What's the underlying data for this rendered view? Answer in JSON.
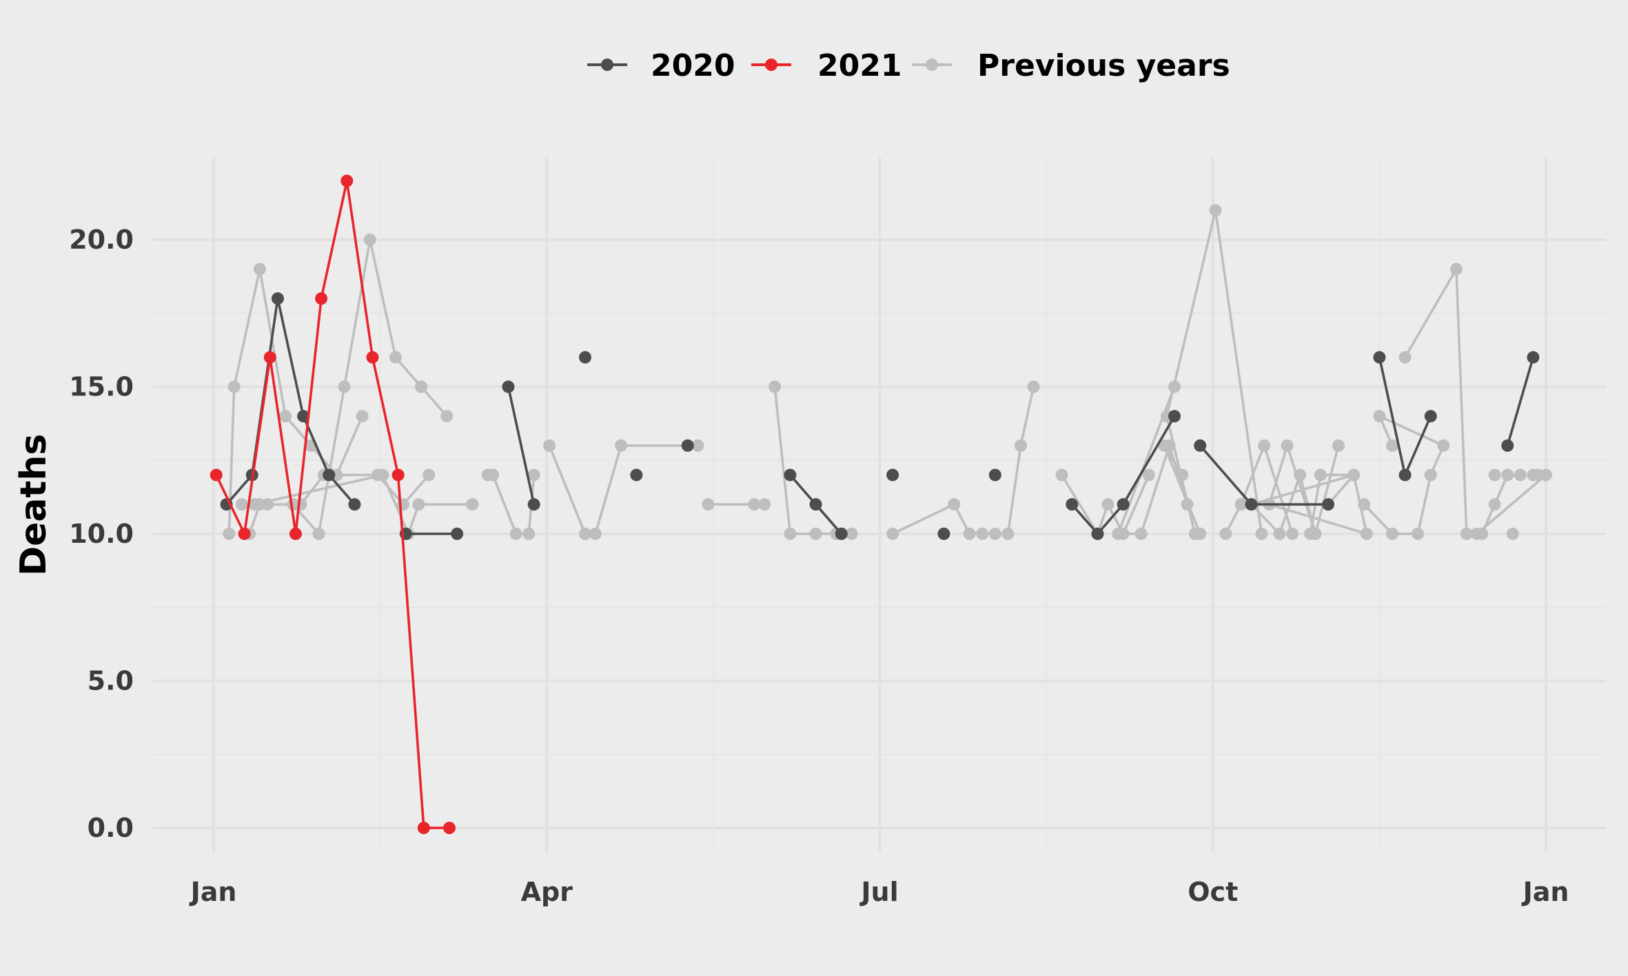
{
  "chart_data": {
    "type": "line",
    "title": "",
    "xlabel": "",
    "ylabel": "Deaths",
    "ylim": [
      -0.8,
      22.8
    ],
    "y_ticks": [
      0,
      5,
      10,
      15,
      20
    ],
    "y_tick_labels": [
      "0.0",
      "5.0",
      "10.0",
      "15.0",
      "20.0"
    ],
    "x_ticks": [
      "Jan",
      "Apr",
      "Jul",
      "Oct",
      "Jan"
    ],
    "x_unit": "week of year",
    "x_tick_weeks": [
      1,
      14,
      27,
      40,
      53
    ],
    "grid": true,
    "legend_position": "top",
    "series": [
      {
        "name": "2020",
        "color": "#4D4D4D",
        "points": [
          [
            1.5,
            11
          ],
          [
            2.5,
            12
          ],
          [
            3.5,
            18
          ],
          [
            4.5,
            14
          ],
          [
            5.5,
            12
          ],
          [
            6.5,
            11
          ],
          [
            8.5,
            10
          ],
          [
            10.5,
            10
          ],
          [
            12.5,
            15
          ],
          [
            13.5,
            11
          ],
          [
            15.5,
            16
          ],
          [
            17.5,
            12
          ],
          [
            19.5,
            13
          ],
          [
            23.5,
            12
          ],
          [
            24.5,
            11
          ],
          [
            25.5,
            10
          ],
          [
            27.5,
            12
          ],
          [
            29.5,
            10
          ],
          [
            31.5,
            12
          ],
          [
            34.5,
            11
          ],
          [
            35.5,
            10
          ],
          [
            36.5,
            11
          ],
          [
            38.5,
            14
          ],
          [
            39.5,
            13
          ],
          [
            41.5,
            11
          ],
          [
            44.5,
            11
          ],
          [
            46.5,
            16
          ],
          [
            47.5,
            12
          ],
          [
            48.5,
            14
          ],
          [
            51.5,
            13
          ],
          [
            52.5,
            16
          ]
        ],
        "segments": [
          [
            0,
            6
          ],
          [
            6,
            8
          ],
          [
            8,
            10
          ],
          [
            10,
            11
          ],
          [
            11,
            12
          ],
          [
            12,
            13
          ],
          [
            13,
            16
          ],
          [
            16,
            17
          ],
          [
            17,
            18
          ],
          [
            18,
            19
          ],
          [
            19,
            23
          ],
          [
            23,
            26
          ],
          [
            26,
            29
          ],
          [
            29,
            31
          ]
        ]
      },
      {
        "name": "2021",
        "color": "#E8252B",
        "points": [
          [
            1.1,
            12
          ],
          [
            2.2,
            10
          ],
          [
            3.2,
            16
          ],
          [
            4.2,
            10
          ],
          [
            5.2,
            18
          ],
          [
            6.2,
            22
          ],
          [
            7.2,
            16
          ],
          [
            8.2,
            12
          ],
          [
            9.2,
            0
          ],
          [
            10.2,
            0
          ]
        ],
        "segments": [
          [
            0,
            10
          ]
        ]
      },
      {
        "name": "Previous years",
        "color": "#BEBEBE",
        "points": [
          [
            1.6,
            10
          ],
          [
            1.8,
            15
          ],
          [
            2.8,
            19
          ],
          [
            3.8,
            14
          ],
          [
            4.8,
            13
          ],
          [
            5.8,
            12
          ],
          [
            6.8,
            14
          ],
          [
            2.1,
            11
          ],
          [
            3.1,
            11
          ],
          [
            4.1,
            11
          ],
          [
            5.1,
            10
          ],
          [
            6.1,
            15
          ],
          [
            7.1,
            20
          ],
          [
            8.1,
            16
          ],
          [
            9.1,
            15
          ],
          [
            10.1,
            14
          ],
          [
            2.4,
            10
          ],
          [
            2.8,
            11
          ],
          [
            4.4,
            11
          ],
          [
            5.3,
            12
          ],
          [
            7.4,
            12
          ],
          [
            8.4,
            11
          ],
          [
            9.4,
            12
          ],
          [
            2.6,
            11
          ],
          [
            7.6,
            12
          ],
          [
            8.6,
            10
          ],
          [
            9.0,
            11
          ],
          [
            11.1,
            11
          ],
          [
            11.7,
            12
          ],
          [
            11.9,
            12
          ],
          [
            12.8,
            10
          ],
          [
            13.3,
            10
          ],
          [
            13.5,
            12
          ],
          [
            14.1,
            13
          ],
          [
            15.5,
            10
          ],
          [
            15.9,
            10
          ],
          [
            16.9,
            13
          ],
          [
            19.9,
            13
          ],
          [
            20.3,
            11
          ],
          [
            22.1,
            11
          ],
          [
            22.5,
            11
          ],
          [
            22.9,
            15
          ],
          [
            23.5,
            10
          ],
          [
            24.5,
            10
          ],
          [
            25.3,
            10
          ],
          [
            25.9,
            10
          ],
          [
            27.5,
            10
          ],
          [
            29.9,
            11
          ],
          [
            30.5,
            10
          ],
          [
            31.0,
            10
          ],
          [
            31.5,
            10
          ],
          [
            32.0,
            10
          ],
          [
            32.5,
            13
          ],
          [
            33.0,
            15
          ],
          [
            34.1,
            12
          ],
          [
            35.5,
            10
          ],
          [
            35.9,
            11
          ],
          [
            36.5,
            10
          ],
          [
            37.5,
            12
          ],
          [
            38.5,
            15
          ],
          [
            36.3,
            10
          ],
          [
            37.2,
            10
          ],
          [
            38.3,
            13
          ],
          [
            39.0,
            11
          ],
          [
            39.5,
            10
          ],
          [
            38.1,
            13
          ],
          [
            38.8,
            12
          ],
          [
            39.3,
            10
          ],
          [
            38.2,
            14
          ],
          [
            40.1,
            21
          ],
          [
            41.9,
            10
          ],
          [
            40.5,
            10
          ],
          [
            41.1,
            11
          ],
          [
            42.0,
            13
          ],
          [
            43.1,
            10
          ],
          [
            43.8,
            10
          ],
          [
            44.2,
            12
          ],
          [
            45.5,
            12
          ],
          [
            41.5,
            11
          ],
          [
            42.6,
            10
          ],
          [
            43.4,
            12
          ],
          [
            44.0,
            10
          ],
          [
            44.5,
            11
          ],
          [
            45.5,
            12
          ],
          [
            46.0,
            10
          ],
          [
            42.2,
            11
          ],
          [
            42.9,
            13
          ],
          [
            44.0,
            10
          ],
          [
            44.9,
            13
          ],
          [
            45.9,
            11
          ],
          [
            47.0,
            10
          ],
          [
            48.0,
            10
          ],
          [
            48.5,
            12
          ],
          [
            49.0,
            13
          ],
          [
            46.5,
            14
          ],
          [
            47.0,
            13
          ],
          [
            47.5,
            16
          ],
          [
            49.5,
            19
          ],
          [
            49.9,
            10
          ],
          [
            50.5,
            10
          ],
          [
            51.0,
            11
          ],
          [
            51.5,
            12
          ],
          [
            52.0,
            12
          ],
          [
            52.5,
            12
          ],
          [
            53.0,
            12
          ],
          [
            50.3,
            10
          ],
          [
            51.0,
            12
          ],
          [
            51.7,
            10
          ],
          [
            52.7,
            12
          ]
        ],
        "segments": [
          [
            0,
            7
          ],
          [
            7,
            16
          ],
          [
            16,
            23
          ],
          [
            23,
            28
          ],
          [
            28,
            33
          ],
          [
            33,
            38
          ],
          [
            38,
            41
          ],
          [
            41,
            46
          ],
          [
            46,
            54
          ],
          [
            54,
            59
          ],
          [
            59,
            64
          ],
          [
            64,
            67
          ],
          [
            67,
            71
          ],
          [
            71,
            75
          ],
          [
            75,
            82
          ],
          [
            82,
            89
          ],
          [
            89,
            96
          ],
          [
            96,
            103
          ],
          [
            103,
            106
          ]
        ]
      }
    ]
  }
}
